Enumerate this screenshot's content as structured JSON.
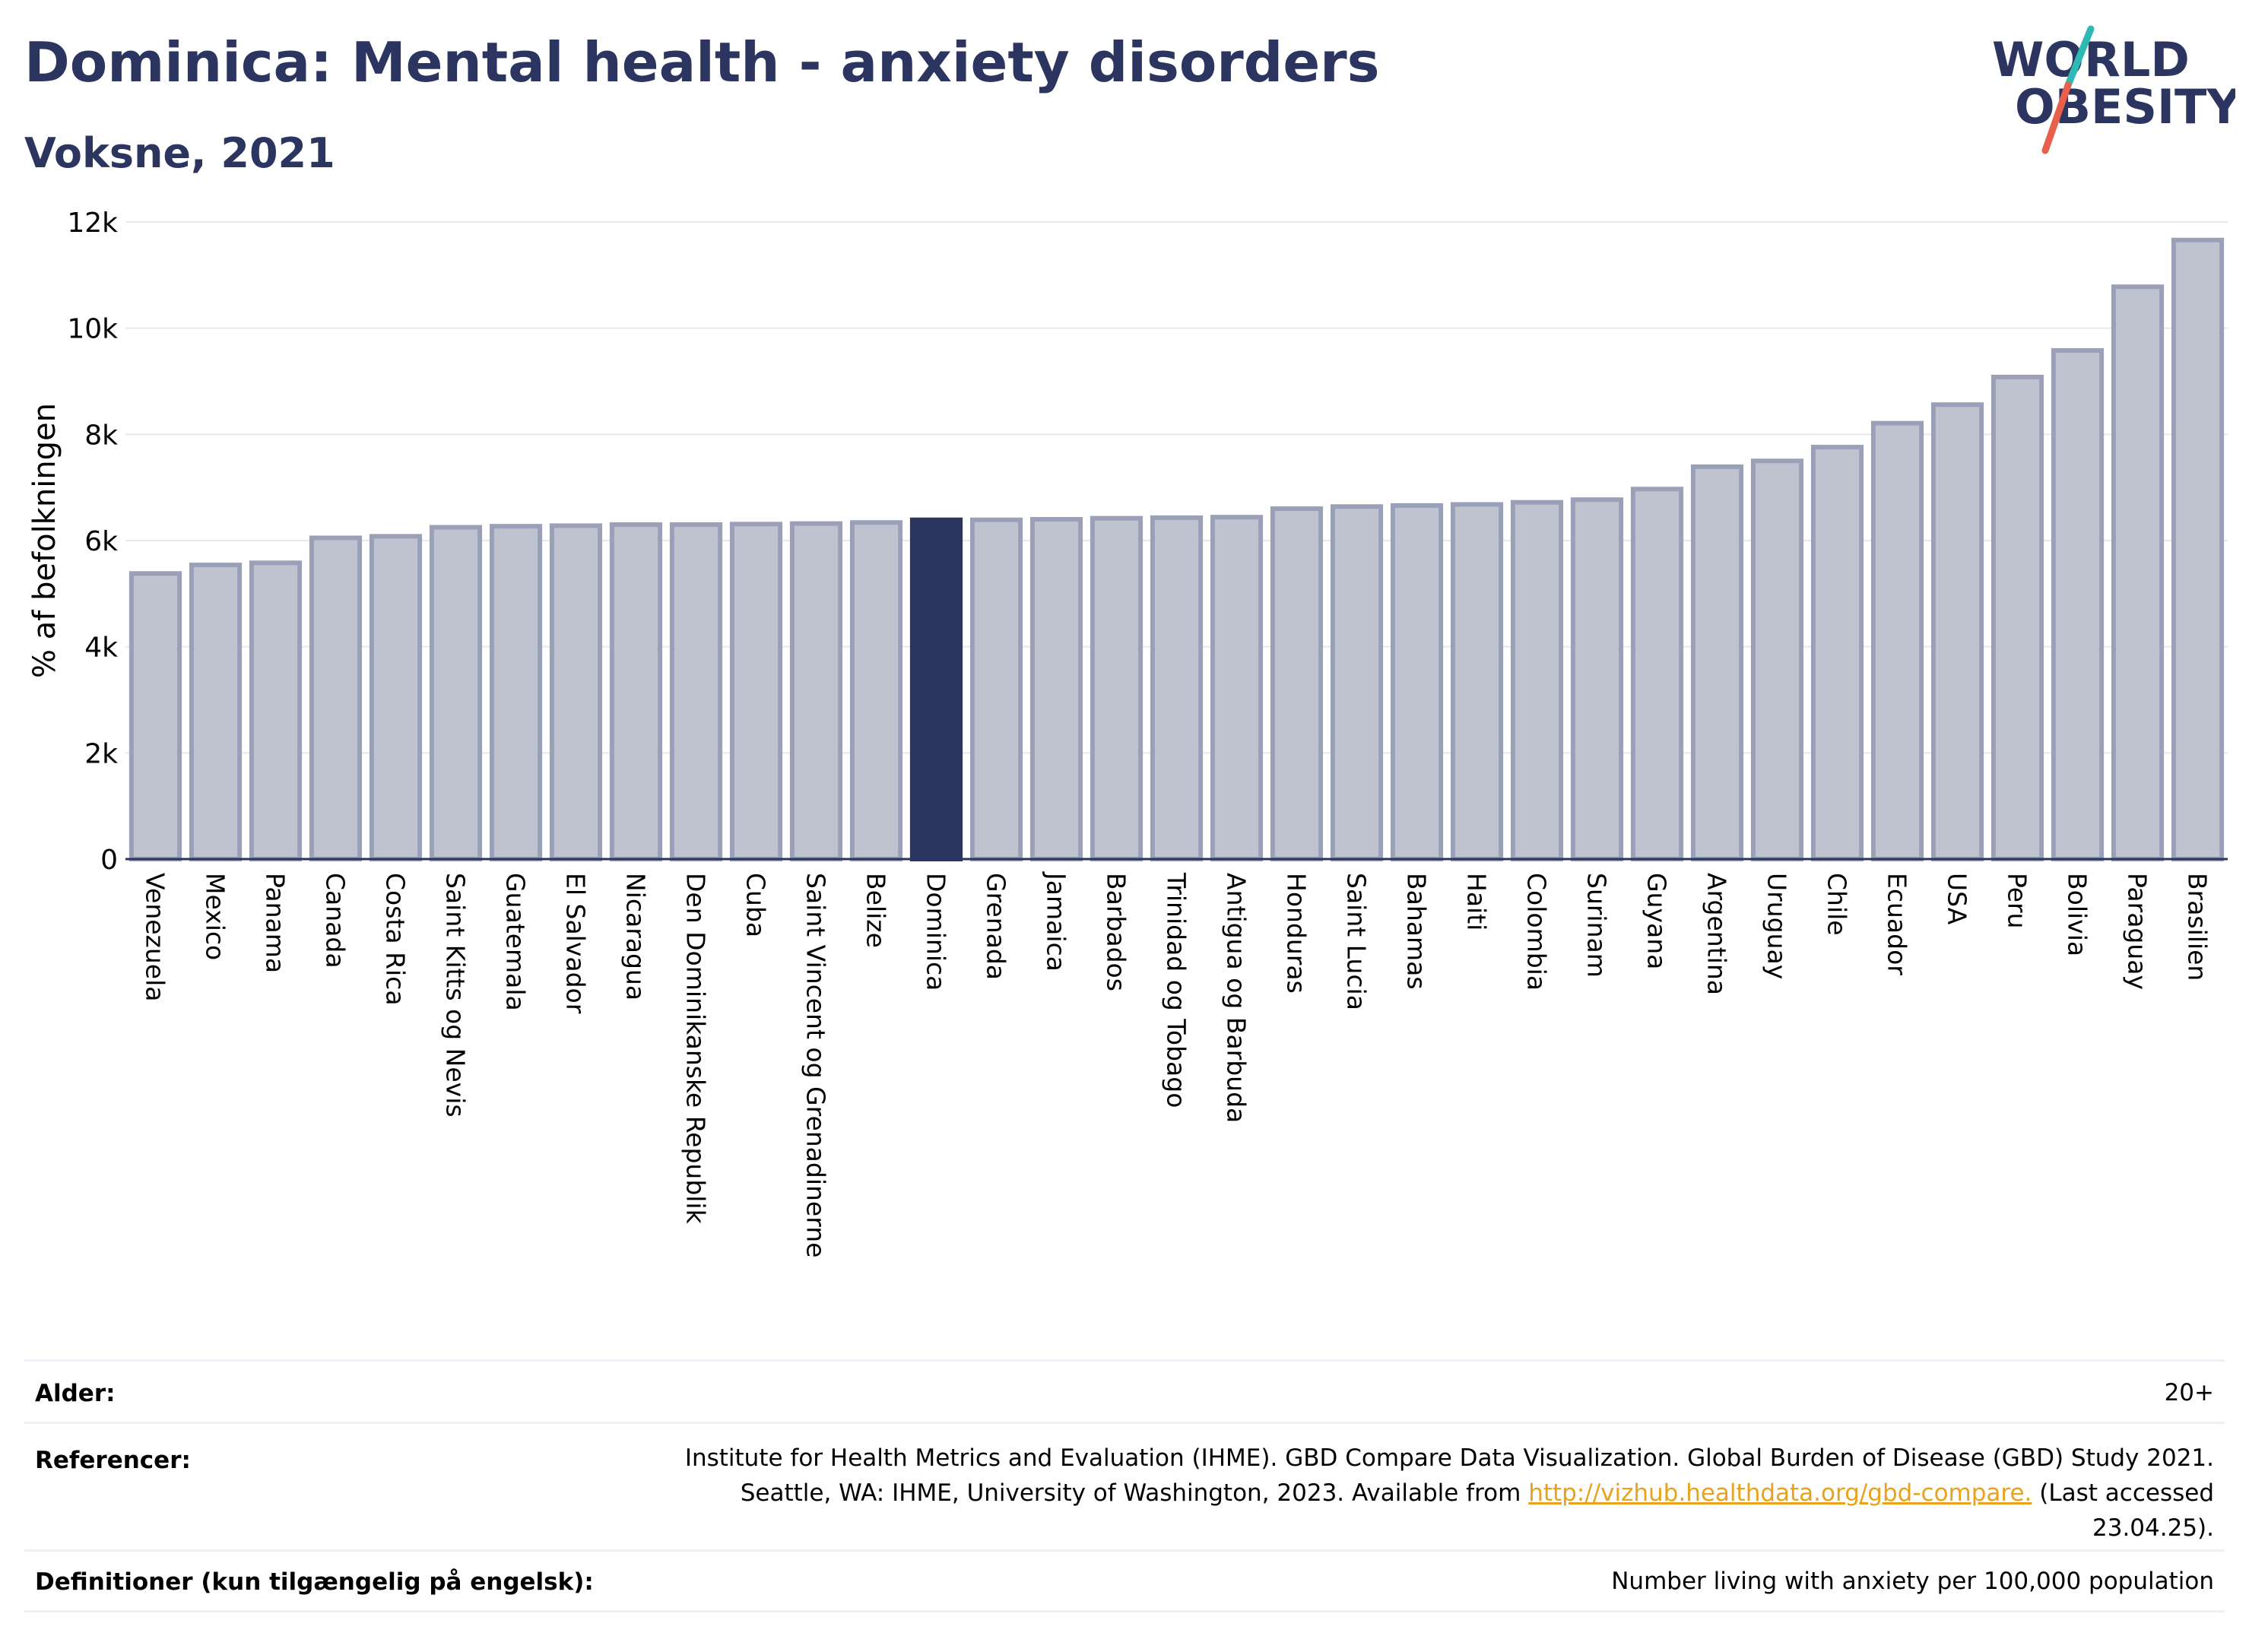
{
  "header": {
    "title": "Dominica: Mental health - anxiety disorders",
    "subtitle": "Voksne, 2021"
  },
  "logo": {
    "line1": "WORLD",
    "line2": "OBESITY",
    "slash_colors": [
      "#2fb9b3",
      "#e8604c"
    ]
  },
  "colors": {
    "bar": "#bfc3d0",
    "bar_edge": "#9aa0b8",
    "highlight": "#2b3560",
    "title": "#2b3560",
    "grid": "#e6e8ef"
  },
  "chart_data": {
    "type": "bar",
    "ylabel": "% af befolkningen",
    "ylim": [
      0,
      12000
    ],
    "yticks": [
      0,
      2000,
      4000,
      6000,
      8000,
      10000,
      12000
    ],
    "ytick_labels": [
      "0",
      "2k",
      "4k",
      "6k",
      "8k",
      "10k",
      "12k"
    ],
    "highlight": "Dominica",
    "categories": [
      "Venezuela",
      "Mexico",
      "Panama",
      "Canada",
      "Costa Rica",
      "Saint Kitts og Nevis",
      "Guatemala",
      "El Salvador",
      "Nicaragua",
      "Den Dominikanske Republik",
      "Cuba",
      "Saint Vincent og Grenadinerne",
      "Belize",
      "Dominica",
      "Grenada",
      "Jamaica",
      "Barbados",
      "Trinidad og Tobago",
      "Antigua og Barbuda",
      "Honduras",
      "Saint Lucia",
      "Bahamas",
      "Haiti",
      "Colombia",
      "Surinam",
      "Guyana",
      "Argentina",
      "Uruguay",
      "Chile",
      "Ecuador",
      "USA",
      "Peru",
      "Bolivia",
      "Paraguay",
      "Brasilien"
    ],
    "values": [
      5380,
      5540,
      5580,
      6050,
      6080,
      6250,
      6270,
      6280,
      6300,
      6300,
      6310,
      6320,
      6340,
      6390,
      6390,
      6400,
      6420,
      6430,
      6440,
      6600,
      6640,
      6660,
      6680,
      6720,
      6770,
      6970,
      7390,
      7500,
      7760,
      8210,
      8560,
      9080,
      9580,
      10780,
      11660
    ],
    "grid": true,
    "legend": "none"
  },
  "info": {
    "age_label": "Alder:",
    "age_value": "20+",
    "ref_label": "Referencer:",
    "ref_text_1": "Institute for Health Metrics and Evaluation (IHME). GBD Compare Data Visualization. Global Burden of Disease (GBD) Study 2021.",
    "ref_text_2": "Seattle, WA: IHME, University of Washington, 2023. Available from ",
    "ref_link": "http://vizhub.healthdata.org/gbd-compare.",
    "ref_text_3": " (Last accessed",
    "ref_text_4": "23.04.25).",
    "def_label": "Definitioner (kun tilgængelig på engelsk):",
    "def_value": "Number living with anxiety per 100,000 population"
  }
}
